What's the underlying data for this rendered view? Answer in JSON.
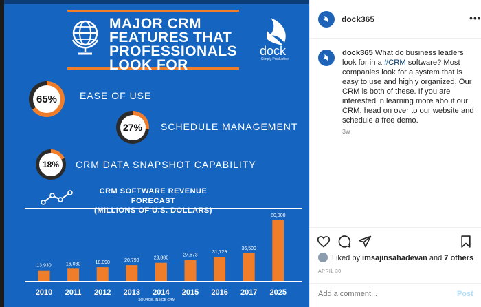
{
  "infographic": {
    "title_lines": [
      "MAJOR CRM",
      "FEATURES THAT",
      "PROFESSIONALS",
      "LOOK FOR"
    ],
    "brand": {
      "name": "dock",
      "tagline": "Simply Productive",
      "color": "#1565c0"
    },
    "accent_color": "#f07d2a",
    "features": [
      {
        "percent": "65%",
        "value": 65,
        "label": "EASE OF USE"
      },
      {
        "percent": "27%",
        "value": 27,
        "label": "SCHEDULE MANAGEMENT"
      },
      {
        "percent": "18%",
        "value": 18,
        "label": "CRM DATA SNAPSHOT CAPABILITY"
      }
    ],
    "chart_heading_line1": "CRM SOFTWARE REVENUE FORECAST",
    "chart_heading_line2": "(MILLIONS OF U.S. DOLLARS)",
    "source": "SOURCE: INSIDE CRM"
  },
  "chart_data": {
    "type": "bar",
    "title": "CRM SOFTWARE REVENUE FORECAST (MILLIONS OF U.S. DOLLARS)",
    "categories": [
      "2010",
      "2011",
      "2012",
      "2013",
      "2014",
      "2015",
      "2016",
      "2017",
      "2025"
    ],
    "values": [
      13930,
      16080,
      18090,
      20790,
      23886,
      27573,
      31729,
      36509,
      80000
    ],
    "value_labels": [
      "13,930",
      "16,080",
      "18,090",
      "20,790",
      "23,886",
      "27,573",
      "31,729",
      "36,509",
      "80,000"
    ],
    "bar_color": "#f07d2a",
    "ylim": [
      0,
      80000
    ],
    "grid": false,
    "legend": "none"
  },
  "post": {
    "username": "dock365",
    "caption_user": "dock365",
    "caption_before": "What do business leaders look for in a ",
    "caption_tag": "#CRM",
    "caption_after": " software? Most companies look for a system that is easy to use and highly organized. Our CRM is both of these. If you are interested in learning more about our CRM, head on over to our website and schedule a free demo.",
    "time_ago": "3w",
    "more_icon": "more-options-icon",
    "likes_prefix": "Liked by ",
    "likes_user": "imsajinsahadevan",
    "likes_mid": " and ",
    "likes_others": "7 others",
    "date": "APRIL 30",
    "comment_placeholder": "Add a comment...",
    "post_label": "Post",
    "icons": [
      "heart-icon",
      "comment-icon",
      "share-icon",
      "bookmark-icon"
    ]
  }
}
